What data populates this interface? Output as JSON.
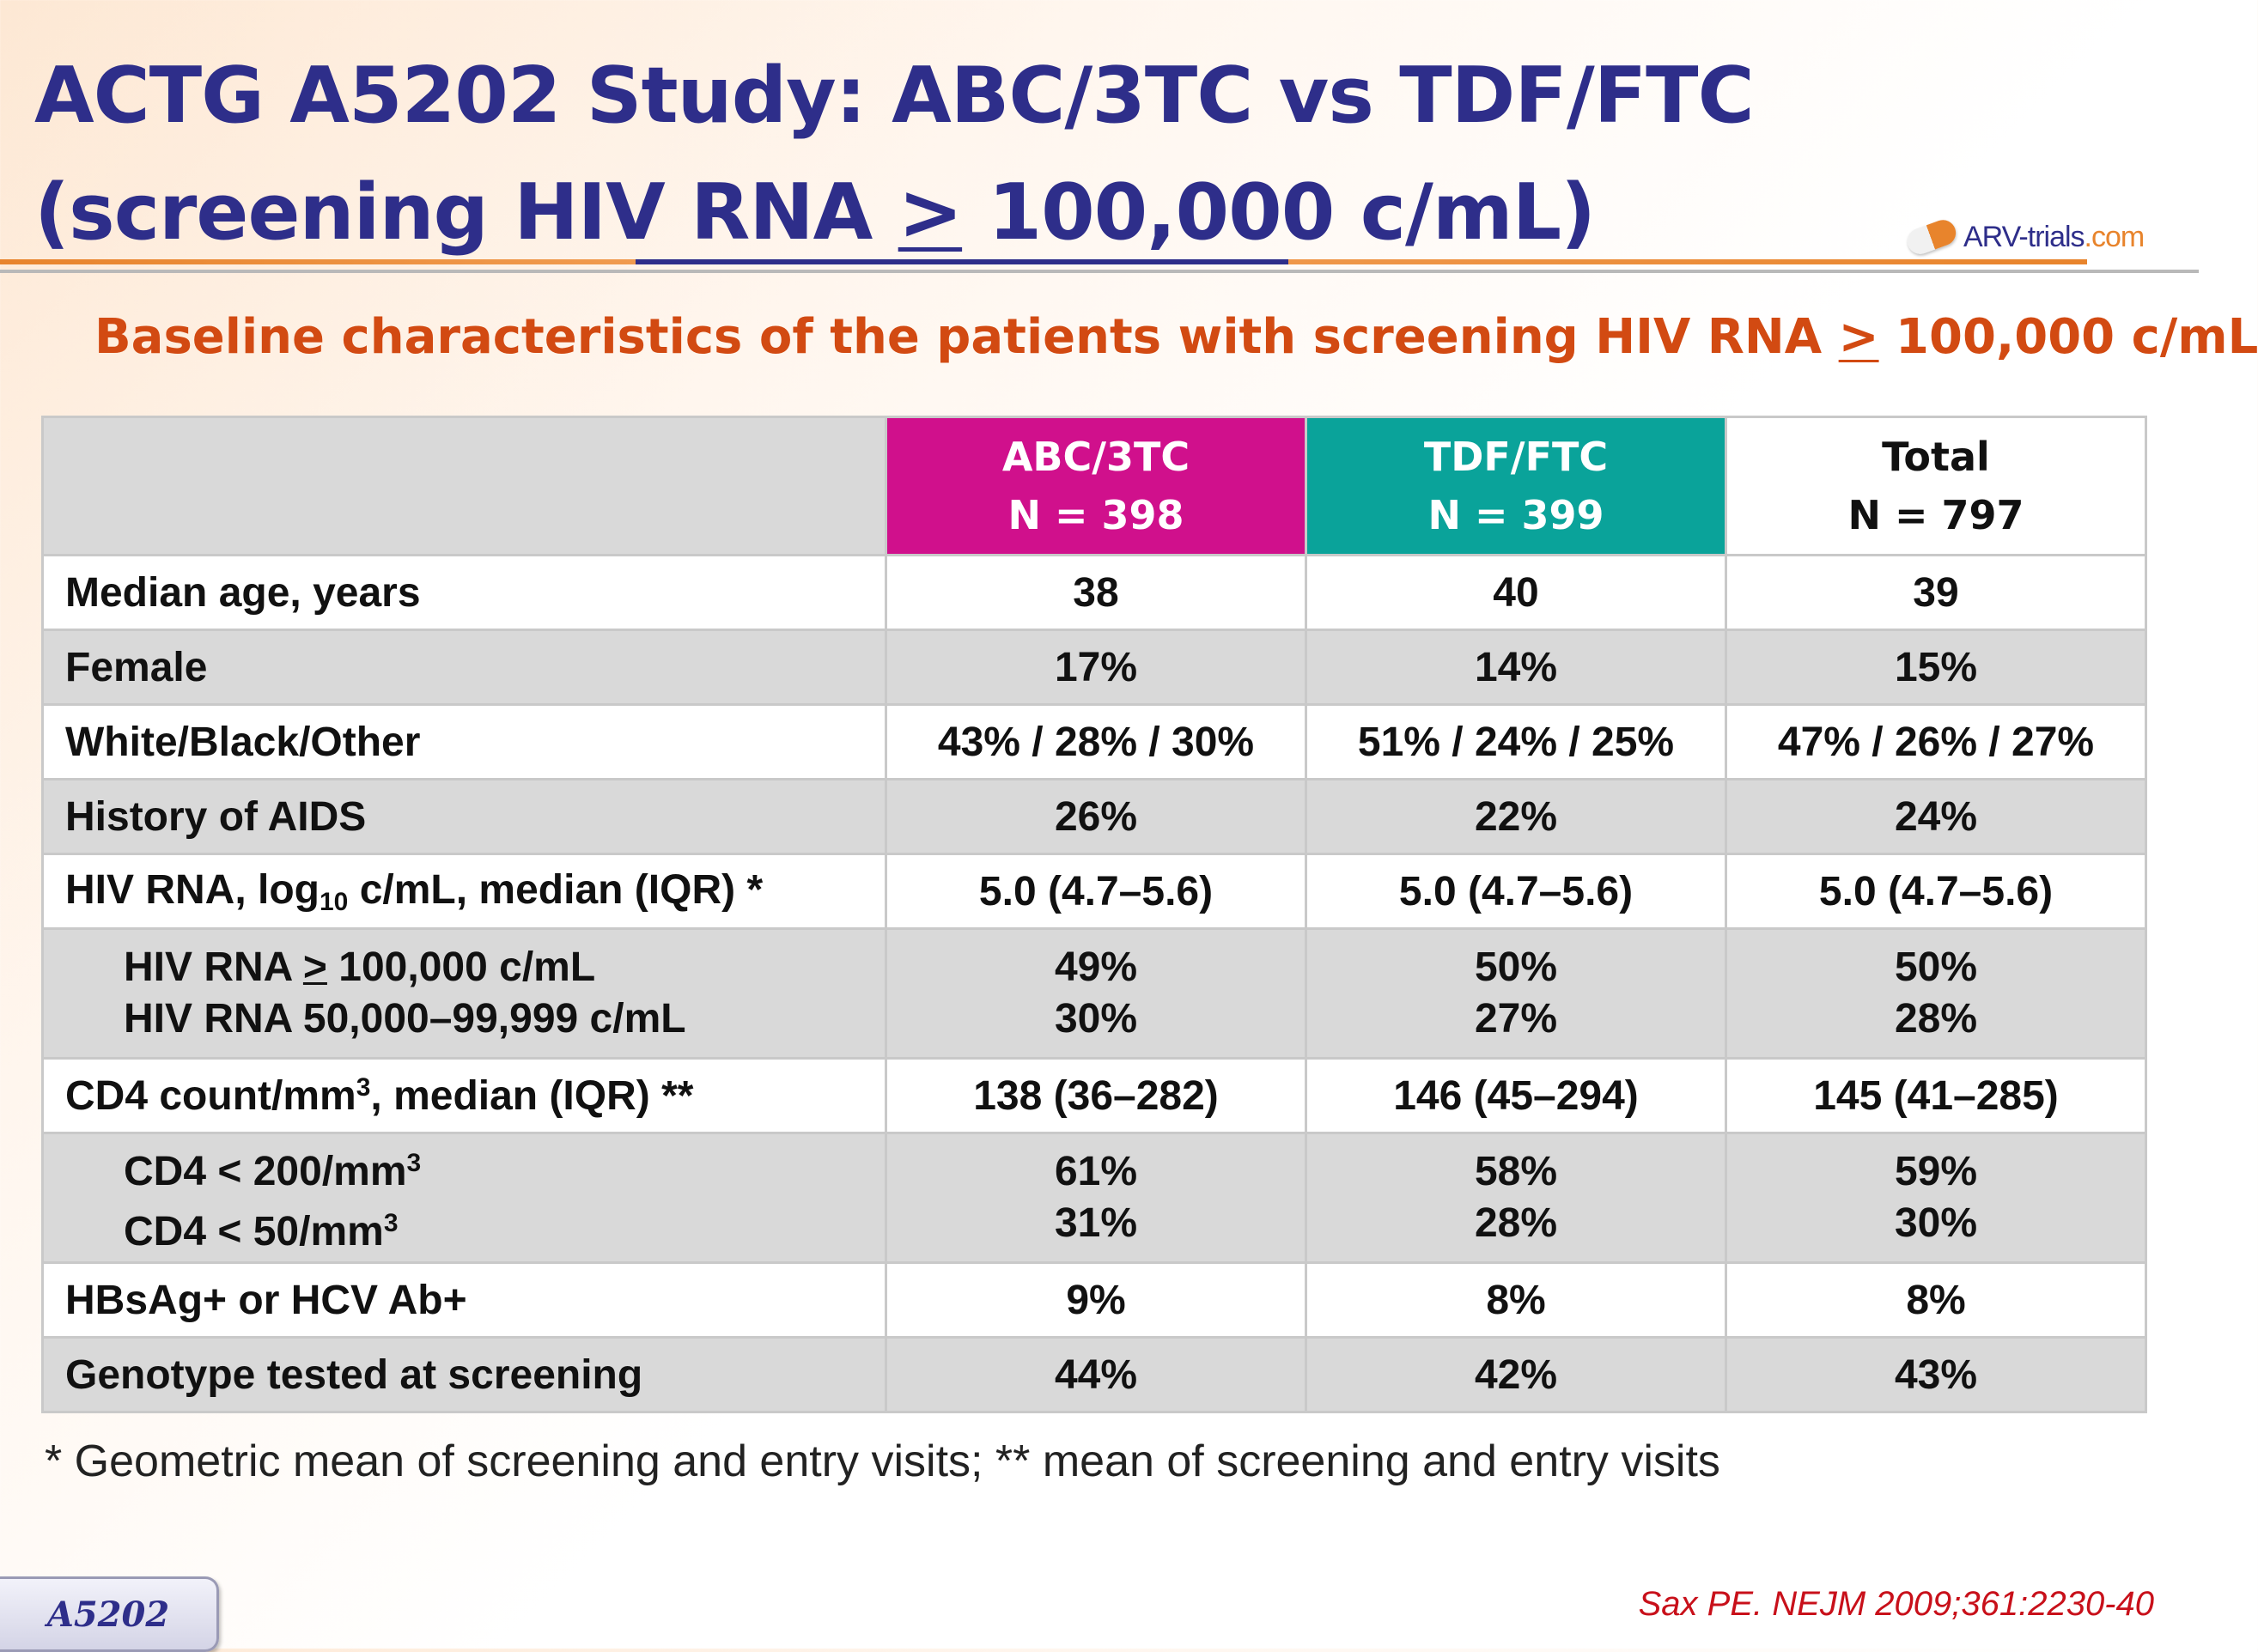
{
  "title": {
    "line1": "ACTG A5202 Study: ABC/3TC vs TDF/FTC",
    "line2_pre": "(screening HIV RNA ",
    "line2_symbol": ">",
    "line2_post": " 100,000 c/mL)"
  },
  "logo": {
    "text_main": "ARV-trials",
    "text_dot": ".com"
  },
  "subtitle": {
    "pre": "Baseline characteristics of the patients with screening HIV RNA ",
    "symbol": ">",
    "post": " 100,000 c/mL"
  },
  "table": {
    "headers": [
      {
        "name": "ABC/3TC",
        "n": "N = 398"
      },
      {
        "name": "TDF/FTC",
        "n": "N = 399"
      },
      {
        "name": "Total",
        "n": "N = 797"
      }
    ],
    "rows": {
      "age": {
        "label": "Median age, years",
        "values": [
          "38",
          "40",
          "39"
        ]
      },
      "female": {
        "label": "Female",
        "values": [
          "17%",
          "14%",
          "15%"
        ]
      },
      "race": {
        "label": "White/Black/Other",
        "values": [
          "43% / 28% / 30%",
          "51% / 24% / 25%",
          "47% / 26% / 27%"
        ]
      },
      "aids": {
        "label": "History of AIDS",
        "values": [
          "26%",
          "22%",
          "24%"
        ]
      },
      "rna": {
        "label_pre": "HIV RNA, log",
        "label_sub": "10",
        "label_post": " c/mL, median (IQR) *",
        "values": [
          "5.0 (4.7–5.6)",
          "5.0 (4.7–5.6)",
          "5.0 (4.7–5.6)"
        ]
      },
      "rna_sub": {
        "line1_pre": "HIV RNA ",
        "line1_symbol": ">",
        "line1_post": " 100,000 c/mL",
        "line2": "HIV RNA 50,000–99,999 c/mL",
        "values1": [
          "49%",
          "50%",
          "50%"
        ],
        "values2": [
          "30%",
          "27%",
          "28%"
        ]
      },
      "cd4": {
        "label_pre": "CD4 count/mm",
        "label_sup": "3",
        "label_post": ", median (IQR) **",
        "values": [
          "138 (36–282)",
          "146 (45–294)",
          "145 (41–285)"
        ]
      },
      "cd4_sub": {
        "line1_pre": "CD4 < 200/mm",
        "line1_sup": "3",
        "line2_pre": "CD4 < 50/mm",
        "line2_sup": "3",
        "values1": [
          "61%",
          "58%",
          "59%"
        ],
        "values2": [
          "31%",
          "28%",
          "30%"
        ]
      },
      "hbsag": {
        "label": "HBsAg+ or HCV Ab+",
        "values": [
          "9%",
          "8%",
          "8%"
        ]
      },
      "genotype": {
        "label": "Genotype tested at screening",
        "values": [
          "44%",
          "42%",
          "43%"
        ]
      }
    }
  },
  "footnote": "* Geometric mean of screening and entry visits; ** mean of screening and entry visits",
  "badge": "A5202",
  "citation": "Sax PE. NEJM 2009;361:2230-40"
}
